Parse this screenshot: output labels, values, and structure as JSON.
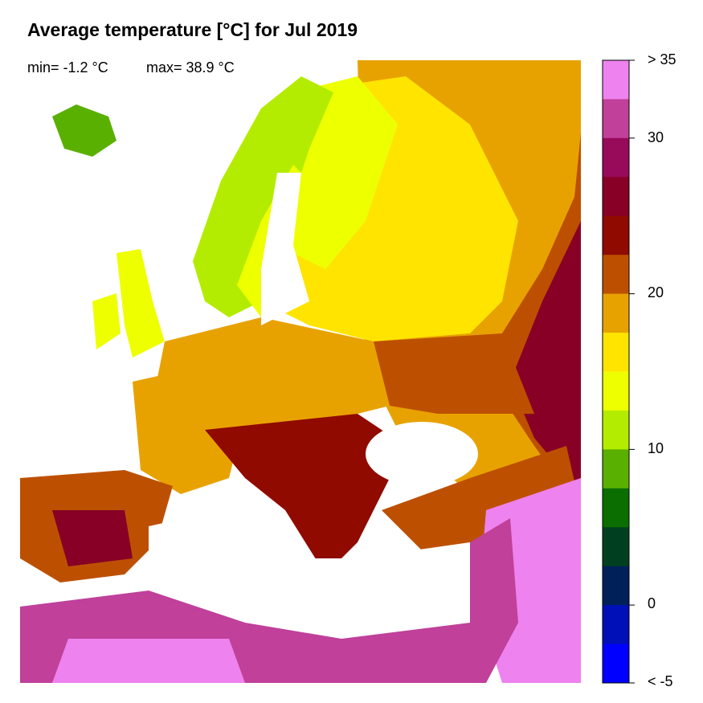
{
  "title": "Average temperature [°C] for Jul 2019",
  "stats": {
    "min": "min= -1.2 °C",
    "max": "max= 38.9 °C"
  },
  "legend": {
    "bins": [
      {
        "from": 35,
        "color": "#EE82EE"
      },
      {
        "from": 32.5,
        "color": "#C0409A"
      },
      {
        "from": 30,
        "color": "#980A5A"
      },
      {
        "from": 27.5,
        "color": "#880026"
      },
      {
        "from": 25,
        "color": "#900A00"
      },
      {
        "from": 22.5,
        "color": "#BD5000"
      },
      {
        "from": 20,
        "color": "#E8A200"
      },
      {
        "from": 17.5,
        "color": "#FFE400"
      },
      {
        "from": 15,
        "color": "#EEFF00"
      },
      {
        "from": 12.5,
        "color": "#B3EC00"
      },
      {
        "from": 10,
        "color": "#5AB000"
      },
      {
        "from": 7.5,
        "color": "#0A6E00"
      },
      {
        "from": 5,
        "color": "#004020"
      },
      {
        "from": 2.5,
        "color": "#00205A"
      },
      {
        "from": 0,
        "color": "#0010B8"
      },
      {
        "from": -5,
        "color": "#0000FF"
      }
    ],
    "tick_labels": [
      "> 35",
      "30",
      "20",
      "10",
      "0",
      "< -5"
    ]
  }
}
